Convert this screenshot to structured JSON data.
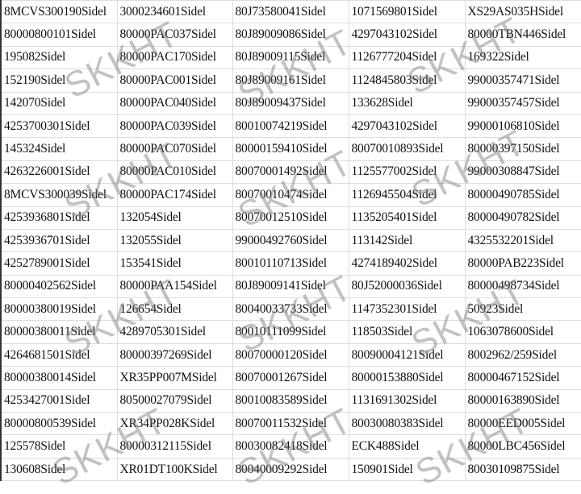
{
  "watermark": "SKKHT",
  "rows": [
    [
      "8MCVS300190Sidel",
      "3000234601Sidel",
      "80J73580041Sidel",
      "1071569801Sidel",
      "XS29AS035HSidel"
    ],
    [
      "80000800101Sidel",
      "80000PAC037Sidel",
      "80J89009086Sidel",
      "4297043102Sidel",
      "80000TBN446Sidel"
    ],
    [
      "195082Sidel",
      "80000PAC170Sidel",
      "80J89009115Sidel",
      "1126777204Sidel",
      "169322Sidel"
    ],
    [
      "152190Sidel",
      "80000PAC001Sidel",
      "80J89009161Sidel",
      "1124845803Sidel",
      "99000357471Sidel"
    ],
    [
      "142070Sidel",
      "80000PAC040Sidel",
      "80J89009437Sidel",
      "133628Sidel",
      "99000357457Sidel"
    ],
    [
      "4253700301Sidel",
      "80000PAC039Sidel",
      "80010074219Sidel",
      "4297043102Sidel",
      "99000106810Sidel"
    ],
    [
      "145324Sidel",
      "80000PAC070Sidel",
      "80000159410Sidel",
      "80070010893Sidel",
      "80000397150Sidel"
    ],
    [
      "4263226001Sidel",
      "80000PAC010Sidel",
      "80070001492Sidel",
      "1125577002Sidel",
      "99000308847Sidel"
    ],
    [
      "8MCVS300039Sidel",
      "80000PAC174Sidel",
      "80070010474Sidel",
      "1126945504Sidel",
      "80000490785Sidel"
    ],
    [
      "4253936801Sidel",
      "132054Sidel",
      "80070012510Sidel",
      "1135205401Sidel",
      "80000490782Sidel"
    ],
    [
      "4253936701Sidel",
      "132055Sidel",
      "99000492760Sidel",
      "113142Sidel",
      "4325532201Sidel"
    ],
    [
      "4252789001Sidel",
      "153541Sidel",
      "80010110713Sidel",
      "4274189402Sidel",
      "80000PAB223Sidel"
    ],
    [
      "80000402562Sidel",
      "80000PAA154Sidel",
      "80J89009141Sidel",
      "80J52000036Sidel",
      "80000498734Sidel"
    ],
    [
      "80000380019Sidel",
      "126654Sidel",
      "80040033733Sidel",
      "1147352301Sidel",
      "50923Sidel"
    ],
    [
      "80000380011Sidel",
      "4289705301Sidel",
      "80010111099Sidel",
      "118503Sidel",
      "1063078600Sidel"
    ],
    [
      "4264681501Sidel",
      "80000397269Sidel",
      "80070000120Sidel",
      "80090004121Sidel",
      "8002962/259Sidel"
    ],
    [
      "80000380014Sidel",
      "XR35PP007MSidel",
      "80070001267Sidel",
      "80000153880Sidel",
      "80000467152Sidel"
    ],
    [
      "4253427001Sidel",
      "80500027079Sidel",
      "80010083589Sidel",
      "1131691302Sidel",
      "80000163890Sidel"
    ],
    [
      "80000800539Sidel",
      "XR34PP028KSidel",
      "80070011532Sidel",
      "80030080383Sidel",
      "80000EED005Sidel"
    ],
    [
      "125578Sidel",
      "80000312115Sidel",
      "80030082418Sidel",
      "ECK488Sidel",
      "80000LBC456Sidel"
    ],
    [
      "130608Sidel",
      "XR01DT100KSidel",
      "80040009292Sidel",
      "150901Sidel",
      "80030109875Sidel"
    ]
  ]
}
